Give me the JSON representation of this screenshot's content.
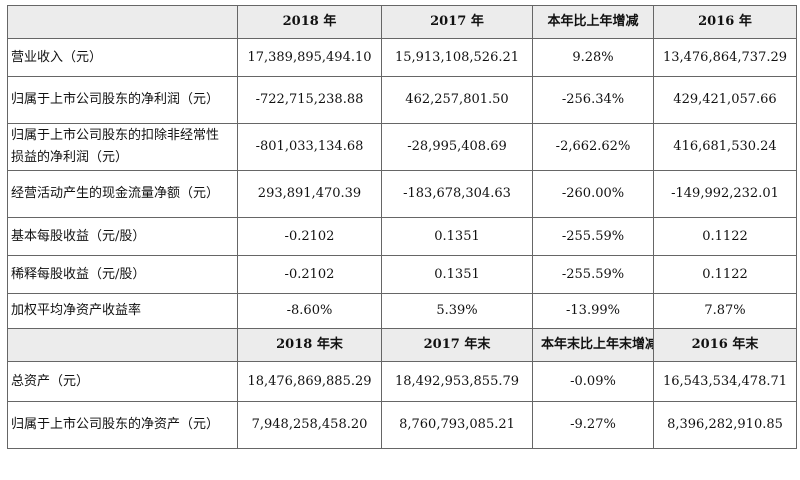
{
  "header1": [
    "2018 年",
    "2017 年",
    "本年比上年增减",
    "2016 年"
  ],
  "rows1": [
    {
      "label": "营业收入（元）",
      "values": [
        "17,389,895,494.10",
        "15,913,108,526.21",
        "9.28%",
        "13,476,864,737.29"
      ]
    },
    {
      "label": "归属于上市公司股东的净利润（元）",
      "values": [
        "-722,715,238.88",
        "462,257,801.50",
        "-256.34%",
        "429,421,057.66"
      ]
    },
    {
      "label": "归属于上市公司股东的扣除非经常性损益的净利润（元）",
      "values": [
        "-801,033,134.68",
        "-28,995,408.69",
        "-2,662.62%",
        "416,681,530.24"
      ]
    },
    {
      "label": "经营活动产生的现金流量净额（元）",
      "values": [
        "293,891,470.39",
        "-183,678,304.63",
        "-260.00%",
        "-149,992,232.01"
      ]
    },
    {
      "label": "基本每股收益（元/股）",
      "values": [
        "-0.2102",
        "0.1351",
        "-255.59%",
        "0.1122"
      ]
    },
    {
      "label": "稀释每股收益（元/股）",
      "values": [
        "-0.2102",
        "0.1351",
        "-255.59%",
        "0.1122"
      ]
    },
    {
      "label": "加权平均净资产收益率",
      "values": [
        "-8.60%",
        "5.39%",
        "-13.99%",
        "7.87%"
      ]
    }
  ],
  "header2": [
    "2018 年末",
    "2017 年末",
    "本年末比上年末增减",
    "2016 年末"
  ],
  "rows2": [
    {
      "label": "总资产（元）",
      "values": [
        "18,476,869,885.29",
        "18,492,953,855.79",
        "-0.09%",
        "16,543,534,478.71"
      ]
    },
    {
      "label": "归属于上市公司股东的净资产（元）",
      "values": [
        "7,948,258,458.20",
        "8,760,793,085.21",
        "-9.27%",
        "8,396,282,910.85"
      ]
    }
  ]
}
